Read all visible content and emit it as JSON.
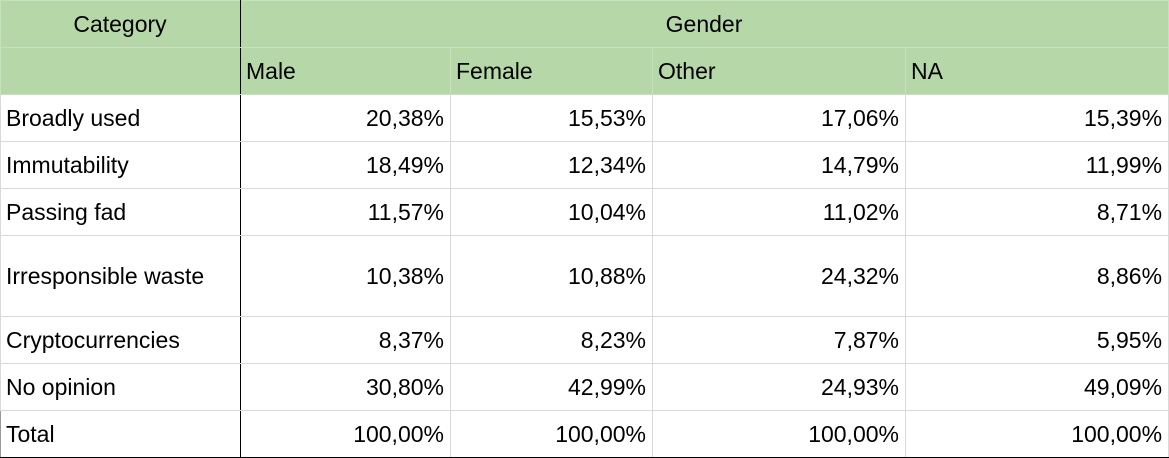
{
  "header": {
    "category": "Category",
    "group": "Gender",
    "columns": [
      "Male",
      "Female",
      "Other",
      "NA"
    ]
  },
  "rows": [
    {
      "category": "Broadly used",
      "values": [
        "20,38%",
        "15,53%",
        "17,06%",
        "15,39%"
      ]
    },
    {
      "category": "Immutability",
      "values": [
        "18,49%",
        "12,34%",
        "14,79%",
        "11,99%"
      ]
    },
    {
      "category": "Passing fad",
      "values": [
        "11,57%",
        "10,04%",
        "11,02%",
        "8,71%"
      ]
    },
    {
      "category": "Irresponsible waste",
      "values": [
        "10,38%",
        "10,88%",
        "24,32%",
        "8,86%"
      ]
    },
    {
      "category": "Cryptocurrencies",
      "values": [
        "8,37%",
        "8,23%",
        "7,87%",
        "5,95%"
      ]
    },
    {
      "category": "No opinion",
      "values": [
        "30,80%",
        "42,99%",
        "24,93%",
        "49,09%"
      ]
    }
  ],
  "total": {
    "category": "Total",
    "values": [
      "100,00%",
      "100,00%",
      "100,00%",
      "100,00%"
    ]
  },
  "colors": {
    "header_bg": "#b6d7a8",
    "grid": "#d9d9d9"
  }
}
